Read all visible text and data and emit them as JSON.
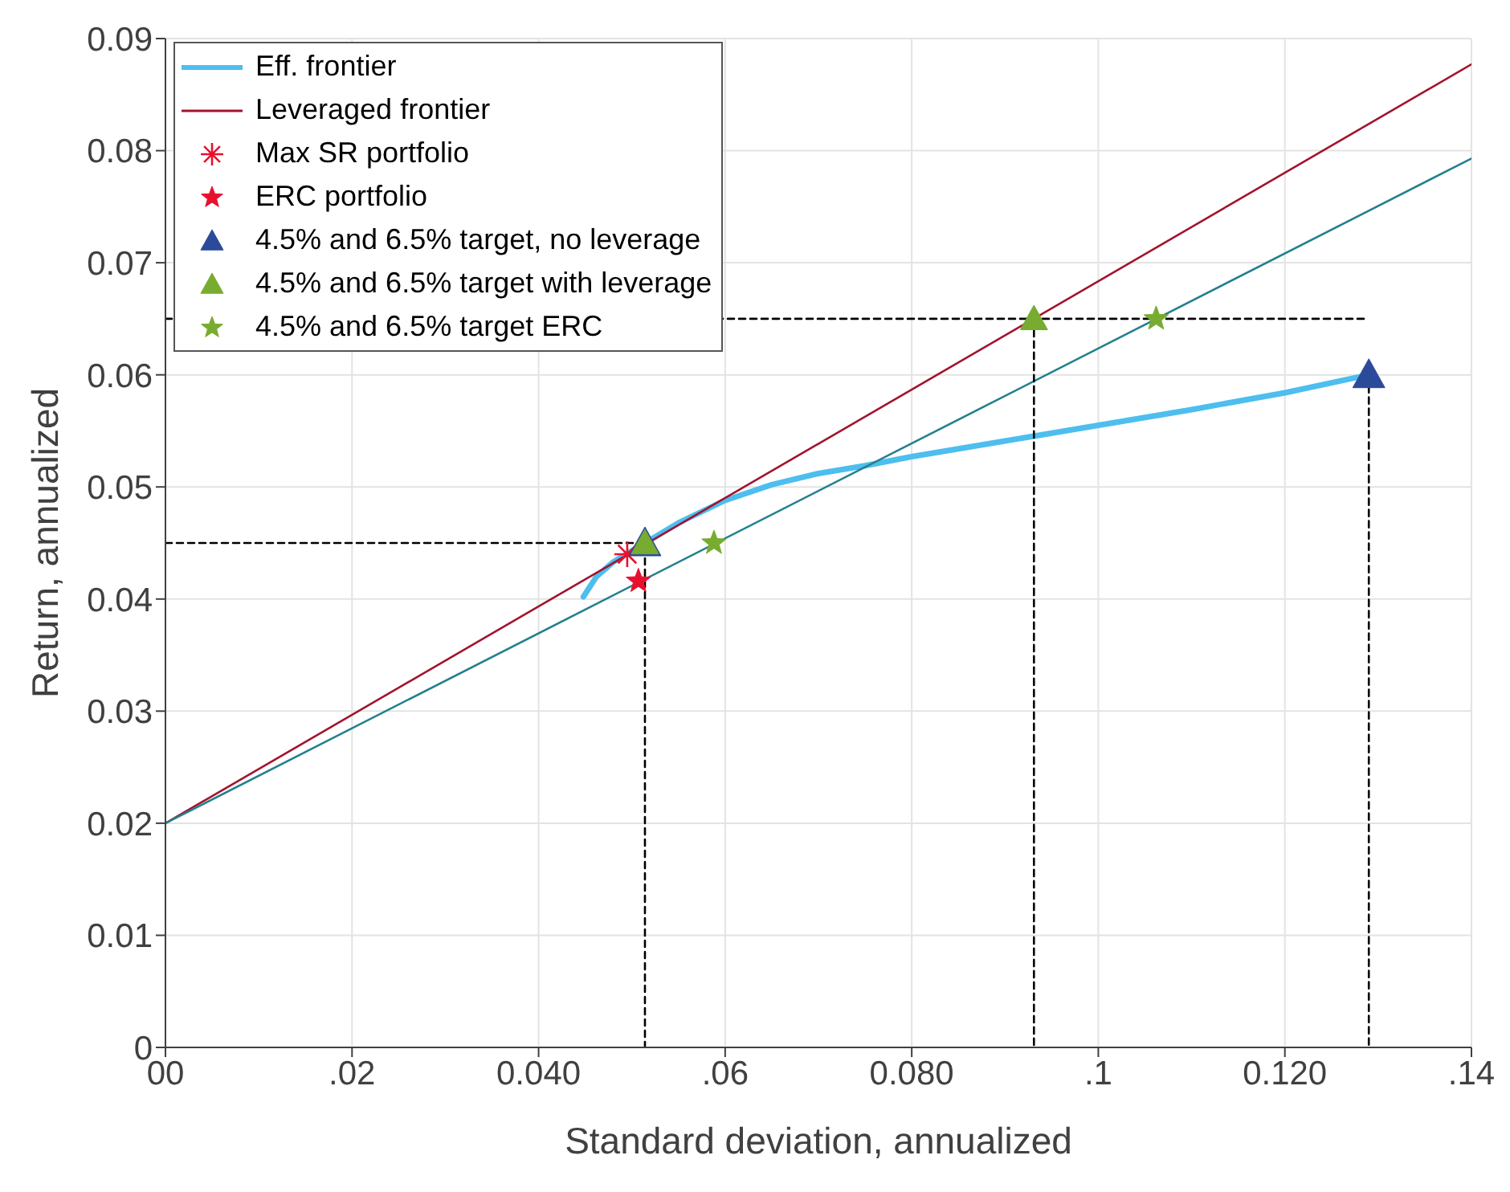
{
  "chart_data": {
    "type": "line",
    "xlabel": "Standard deviation, annualized",
    "ylabel": "Return, annualized",
    "xlim": [
      0,
      0.14
    ],
    "xticks": [
      {
        "value": 0,
        "label": "00"
      },
      {
        "value": 0.02,
        "label": ".02"
      },
      {
        "value": 0.04,
        "label": "0.040"
      },
      {
        "value": 0.06,
        "label": ".06"
      },
      {
        "value": 0.08,
        "label": "0.080"
      },
      {
        "value": 0.1,
        "label": ".1"
      },
      {
        "value": 0.12,
        "label": "0.120"
      },
      {
        "value": 0.14,
        "label": ".14"
      }
    ],
    "ylim": [
      0,
      0.09
    ],
    "yticks": [
      0,
      0.01,
      0.02,
      0.03,
      0.04,
      0.05,
      0.06,
      0.07,
      0.08,
      0.09
    ],
    "grid": true,
    "legend": "top left",
    "series": [
      {
        "name": "Eff. frontier",
        "color": "#4dbeee",
        "marker": "none",
        "line_style": "solid",
        "x": [
          0.0448,
          0.0462,
          0.048,
          0.05,
          0.0514,
          0.055,
          0.06,
          0.065,
          0.07,
          0.075,
          0.08,
          0.09,
          0.1,
          0.11,
          0.12,
          0.129
        ],
        "values": [
          0.0402,
          0.042,
          0.0433,
          0.0443,
          0.045,
          0.0468,
          0.0488,
          0.0502,
          0.0512,
          0.0519,
          0.0527,
          0.0541,
          0.0555,
          0.0569,
          0.0584,
          0.06
        ]
      },
      {
        "name": "Leveraged frontier",
        "color": "#a2142f",
        "marker": "none",
        "line_style": "solid",
        "x": [
          0,
          0.14
        ],
        "values": [
          0.02,
          0.0877
        ]
      },
      {
        "type": "line",
        "color": "#23808f",
        "marker": "none",
        "line_style": "solid",
        "x": [
          0,
          0.14
        ],
        "values": [
          0.02,
          0.0793
        ]
      },
      {
        "type": "line",
        "color": "#000000",
        "marker": "none",
        "line_style": "dashed",
        "x": [
          0,
          0.0514,
          0.0514
        ],
        "values": [
          0.045,
          0.045,
          0
        ]
      },
      {
        "type": "line",
        "color": "#000000",
        "marker": "none",
        "line_style": "dashed",
        "x": [
          0,
          0.1288
        ],
        "values": [
          0.065,
          0.065
        ]
      },
      {
        "type": "line",
        "color": "#000000",
        "marker": "none",
        "line_style": "dashed",
        "x": [
          0.0931,
          0.0931
        ],
        "values": [
          0.065,
          0
        ]
      },
      {
        "type": "line",
        "color": "#000000",
        "marker": "none",
        "line_style": "dashed",
        "x": [
          0.129,
          0.129
        ],
        "values": [
          0.06,
          0
        ]
      },
      {
        "name": "Max SR portfolio",
        "type": "scatter",
        "color": "#e8112d",
        "marker": "cross",
        "x": [
          0.0495
        ],
        "values": [
          0.044
        ]
      },
      {
        "name": "ERC portfolio",
        "type": "scatter",
        "color": "#e8112d",
        "marker": "star",
        "x": [
          0.0507
        ],
        "values": [
          0.0416
        ]
      },
      {
        "name": "4.5% and 6.5% target, no leverage",
        "type": "scatter",
        "color": "#2c4a9a",
        "marker": "triangle",
        "x": [
          0.0514,
          0.129
        ],
        "values": [
          0.045,
          0.06
        ]
      },
      {
        "name": "4.5% and 6.5% target with leverage",
        "type": "scatter",
        "color": "#77ac30",
        "marker": "triangle",
        "x": [
          0.0514,
          0.0931
        ],
        "values": [
          0.045,
          0.065
        ]
      },
      {
        "name": "4.5% and 6.5% target ERC",
        "type": "scatter",
        "color": "#77ac30",
        "marker": "star",
        "x": [
          0.0588,
          0.1062
        ],
        "values": [
          0.045,
          0.065
        ]
      }
    ]
  }
}
